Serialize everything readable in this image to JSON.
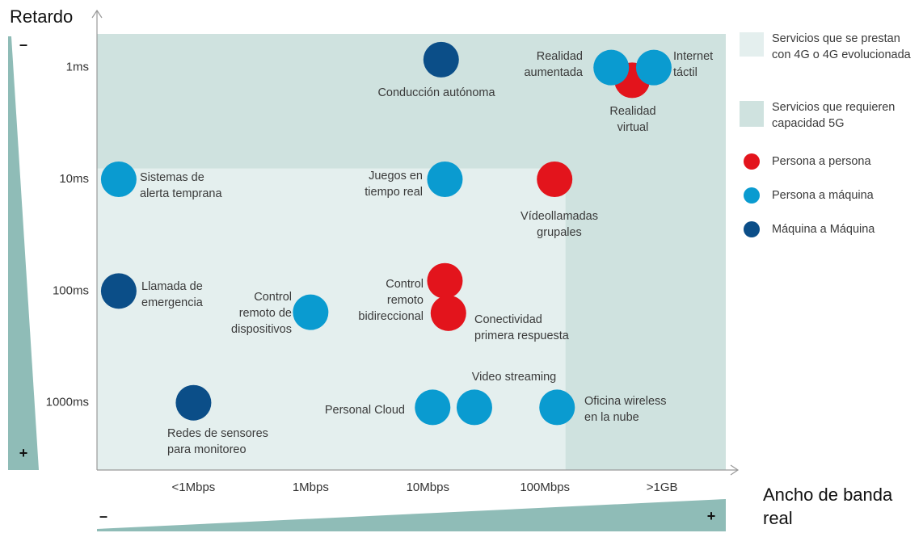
{
  "chart_data": {
    "type": "bubble",
    "y_label": "Retardo",
    "x_label": "Ancho de banda real",
    "y_axis_ends": [
      "–",
      "+"
    ],
    "x_axis_ends": [
      "–",
      "+"
    ],
    "xscale": "log",
    "yscale": "log",
    "y_reversed": true,
    "xlim": [
      0.015,
      3500
    ],
    "ylim": [
      0.5,
      4000
    ],
    "xticks": [
      {
        "value": 0.1,
        "label": "<1Mbps"
      },
      {
        "value": 1,
        "label": "1Mbps"
      },
      {
        "value": 10,
        "label": "10Mbps"
      },
      {
        "value": 100,
        "label": "100Mbps"
      },
      {
        "value": 1000,
        "label": ">1GB"
      }
    ],
    "yticks": [
      {
        "value": 1,
        "label": "1ms"
      },
      {
        "value": 10,
        "label": "10ms"
      },
      {
        "value": 100,
        "label": "100ms"
      },
      {
        "value": 1000,
        "label": "1000ms"
      }
    ],
    "regions": [
      {
        "name": "Servicios que se prestan con 4G o 4G evolucionada",
        "color": "#e4efee"
      },
      {
        "name": "Servicios que requieren capacidad 5G",
        "color": "#cfe2df",
        "x_from": 150,
        "y_to": 8
      }
    ],
    "series": [
      {
        "name": "Persona a persona",
        "color": "#e3141c",
        "points": [
          {
            "label": "Realidad\nvirtual",
            "x": 555,
            "y": 1.3
          },
          {
            "label": "Vídeollamadas\ngrupales",
            "x": 121,
            "y": 10
          },
          {
            "label": "Control\nremoto\nbidireccional",
            "x": 14,
            "y": 81
          },
          {
            "label": "Conectividad\nprimera respuesta",
            "x": 15,
            "y": 158
          }
        ]
      },
      {
        "name": "Persona a máquina",
        "color": "#0a9bd0",
        "points": [
          {
            "label": "Realidad\naumentada",
            "x": 368,
            "y": 1
          },
          {
            "label": "Internet\ntáctil",
            "x": 850,
            "y": 1
          },
          {
            "label": "Sistemas de\nalerta temprana",
            "x": 0.023,
            "y": 10
          },
          {
            "label": "Juegos en\ntiempo real",
            "x": 14,
            "y": 10
          },
          {
            "label": "Control\nremoto de\ndispositivos",
            "x": 1,
            "y": 155
          },
          {
            "label": "Personal Cloud",
            "x": 11,
            "y": 1100
          },
          {
            "label": "Video streaming",
            "x": 25,
            "y": 1100
          },
          {
            "label": "Oficina wireless\nen la nube",
            "x": 127,
            "y": 1100
          }
        ]
      },
      {
        "name": "Máquina a Máquina",
        "color": "#0b4e88",
        "points": [
          {
            "label": "Conducción autónoma",
            "x": 13,
            "y": 0.85
          },
          {
            "label": "Llamada de\nemergencia",
            "x": 0.023,
            "y": 100
          },
          {
            "label": "Redes de sensores\npara monitoreo",
            "x": 0.1,
            "y": 1000
          }
        ]
      }
    ]
  }
}
